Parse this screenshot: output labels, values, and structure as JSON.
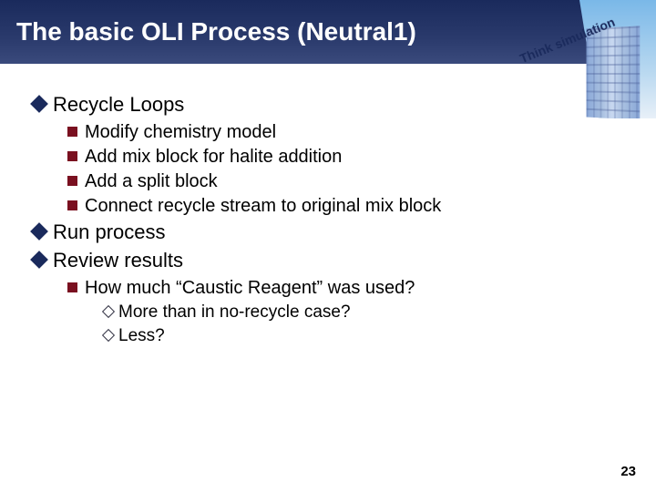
{
  "title": "The basic OLI Process (Neutral1)",
  "corner_tag": "Think simulation",
  "colors": {
    "title_bg_top": "#1a2a5c",
    "title_bg_bottom": "#3a4a7c",
    "title_text": "#ffffff",
    "diamond_fill": "#1a2a5c",
    "square_fill": "#7a1020",
    "body_text": "#000000",
    "sky_top": "#7ab8e8",
    "sky_bottom": "#e8f0f8"
  },
  "bullets": {
    "l1_a": "Recycle Loops",
    "l2_a1": "Modify chemistry model",
    "l2_a2": "Add mix block for halite addition",
    "l2_a3": "Add a split block",
    "l2_a4": "Connect recycle stream to original mix block",
    "l1_b": "Run process",
    "l1_c": "Review results",
    "l2_c1": "How much “Caustic Reagent” was used?",
    "l3_c1a": "More than in no-recycle case?",
    "l3_c1b": "Less?"
  },
  "page_number": "23",
  "fonts": {
    "title_pt": 28,
    "lvl1_pt": 22,
    "lvl2_pt": 20,
    "lvl3_pt": 19,
    "pagenum_pt": 15
  }
}
